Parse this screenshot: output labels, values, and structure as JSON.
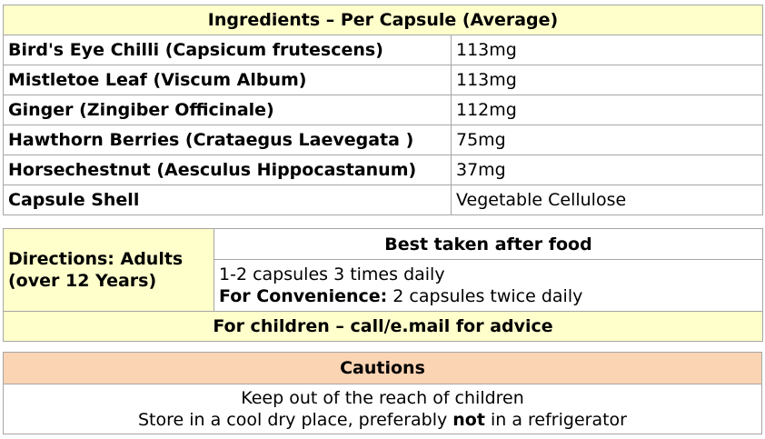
{
  "ingredients": {
    "title": "Ingredients – Per Capsule (Average)",
    "rows": [
      {
        "name": "Bird's Eye Chilli (Capsicum frutescens)",
        "amount": "113mg"
      },
      {
        "name": "Mistletoe Leaf (Viscum Album)",
        "amount": "113mg"
      },
      {
        "name": "Ginger (Zingiber Officinale)",
        "amount": "112mg"
      },
      {
        "name": "Hawthorn Berries (Crataegus Laevegata )",
        "amount": "75mg"
      },
      {
        "name": "Horsechestnut (Aesculus Hippocastanum)",
        "amount": "37mg"
      },
      {
        "name": "Capsule Shell",
        "amount": "Vegetable Cellulose"
      }
    ]
  },
  "directions": {
    "label": "Directions: Adults (over 12 Years)",
    "best_taken": "Best taken after food",
    "dosage": "1-2 capsules 3 times daily",
    "convenience_label": "For Convenience:",
    "convenience_text": " 2 capsules twice daily",
    "children": "For children – call/e.mail for advice"
  },
  "cautions": {
    "title": "Cautions",
    "line1": "Keep out of the reach of children",
    "line2_a": "Store in a cool dry place, preferably ",
    "line2_b": "not",
    "line2_c": " in a refrigerator"
  },
  "colors": {
    "yellow_header": "#ffffcc",
    "orange_header": "#fbd4b4",
    "border": "#a6a6a6"
  }
}
